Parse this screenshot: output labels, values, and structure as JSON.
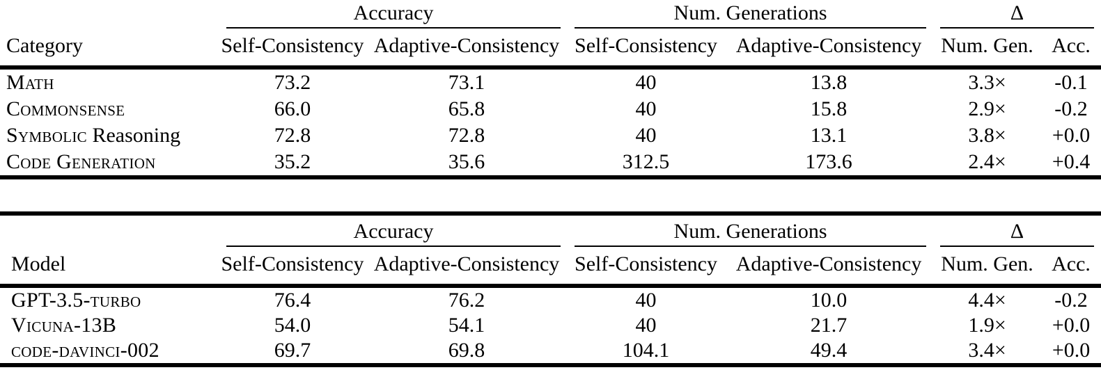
{
  "tables": [
    {
      "title_column": "Category",
      "group_headers": [
        "Accuracy",
        "Num. Generations",
        "Δ"
      ],
      "sub_headers": [
        "Self-Consistency",
        "Adaptive-Consistency",
        "Self-Consistency",
        "Adaptive-Consistency",
        "Num. Gen.",
        "Acc."
      ],
      "rows": [
        {
          "label_smallcaps": "Math",
          "label_plain": "",
          "cells": [
            {
              "text": "73.2",
              "bold": true
            },
            {
              "text": "73.1",
              "bold": false
            },
            {
              "text": "40",
              "bold": false
            },
            {
              "text": "13.8",
              "bold": true
            },
            {
              "text": "3.3×",
              "bold": false
            },
            {
              "text": "-0.1",
              "bold": false
            }
          ]
        },
        {
          "label_smallcaps": "Commonsense",
          "label_plain": "",
          "cells": [
            {
              "text": "66.0",
              "bold": true
            },
            {
              "text": "65.8",
              "bold": false
            },
            {
              "text": "40",
              "bold": false
            },
            {
              "text": "15.8",
              "bold": true
            },
            {
              "text": "2.9×",
              "bold": false
            },
            {
              "text": "-0.2",
              "bold": false
            }
          ]
        },
        {
          "label_smallcaps": "Symbolic",
          "label_plain": " Reasoning",
          "cells": [
            {
              "text": "72.8",
              "bold": false
            },
            {
              "text": "72.8",
              "bold": false
            },
            {
              "text": "40",
              "bold": false
            },
            {
              "text": "13.1",
              "bold": true
            },
            {
              "text": "3.8×",
              "bold": false
            },
            {
              "text": "+0.0",
              "bold": false
            }
          ]
        },
        {
          "label_smallcaps": "Code Generation",
          "label_plain": "",
          "cells": [
            {
              "text": "35.2",
              "bold": false
            },
            {
              "text": "35.6",
              "bold": true
            },
            {
              "text": "312.5",
              "bold": false
            },
            {
              "text": "173.6",
              "bold": true
            },
            {
              "text": "2.4×",
              "bold": false
            },
            {
              "text": "+0.4",
              "bold": false
            }
          ]
        }
      ]
    },
    {
      "title_column": "Model",
      "group_headers": [
        "Accuracy",
        "Num. Generations",
        "Δ"
      ],
      "sub_headers": [
        "Self-Consistency",
        "Adaptive-Consistency",
        "Self-Consistency",
        "Adaptive-Consistency",
        "Num. Gen.",
        "Acc."
      ],
      "rows": [
        {
          "label_smallcaps": "GPT-3.5-turbo",
          "label_plain": "",
          "cells": [
            {
              "text": "76.4",
              "bold": true
            },
            {
              "text": "76.2",
              "bold": false
            },
            {
              "text": "40",
              "bold": false
            },
            {
              "text": "10.0",
              "bold": true
            },
            {
              "text": "4.4×",
              "bold": false
            },
            {
              "text": "-0.2",
              "bold": false
            }
          ]
        },
        {
          "label_smallcaps": "Vicuna-13B",
          "label_plain": "",
          "cells": [
            {
              "text": "54.0",
              "bold": false
            },
            {
              "text": "54.1",
              "bold": true
            },
            {
              "text": "40",
              "bold": false
            },
            {
              "text": "21.7",
              "bold": true
            },
            {
              "text": "1.9×",
              "bold": false
            },
            {
              "text": "+0.0",
              "bold": false
            }
          ]
        },
        {
          "label_smallcaps": "code-davinci-002",
          "label_plain": "",
          "cells": [
            {
              "text": "69.7",
              "bold": false
            },
            {
              "text": "69.8",
              "bold": true
            },
            {
              "text": "104.1",
              "bold": false
            },
            {
              "text": "49.4",
              "bold": true
            },
            {
              "text": "3.4×",
              "bold": false
            },
            {
              "text": "+0.0",
              "bold": false
            }
          ]
        }
      ]
    }
  ]
}
